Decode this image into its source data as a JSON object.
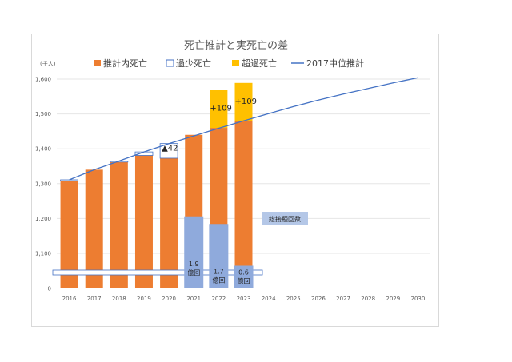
{
  "chart_data": {
    "type": "bar",
    "title": "死亡推計と実死亡の差",
    "ylabel": "(千人)",
    "ylim": [
      0,
      1600
    ],
    "y_axis_break": true,
    "y_ticks": [
      {
        "value": 0,
        "label": "0"
      },
      {
        "value": 1100,
        "label": "1,100"
      },
      {
        "value": 1200,
        "label": "1,200"
      },
      {
        "value": 1300,
        "label": "1,300"
      },
      {
        "value": 1400,
        "label": "1,400"
      },
      {
        "value": 1500,
        "label": "1,500"
      },
      {
        "value": 1600,
        "label": "1,600"
      }
    ],
    "categories": [
      "2016",
      "2017",
      "2018",
      "2019",
      "2020",
      "2021",
      "2022",
      "2023",
      "2024",
      "2025",
      "2026",
      "2027",
      "2028",
      "2029",
      "2030"
    ],
    "legend": [
      {
        "name": "推計内死亡",
        "color": "#ed7d31",
        "kind": "fill"
      },
      {
        "name": "過少死亡",
        "color": "#4472c4",
        "kind": "outline"
      },
      {
        "name": "超過死亡",
        "color": "#ffc000",
        "kind": "fill"
      },
      {
        "name": "2017中位推計",
        "color": "#4472c4",
        "kind": "line"
      }
    ],
    "series": [
      {
        "name": "推計内死亡",
        "values": [
          1308,
          1340,
          1362,
          1381,
          1373,
          1440,
          1460,
          1480,
          null,
          null,
          null,
          null,
          null,
          null,
          null
        ]
      },
      {
        "name": "過少死亡",
        "values": [
          3,
          0,
          3,
          10,
          42,
          0,
          0,
          0,
          null,
          null,
          null,
          null,
          null,
          null,
          null
        ]
      },
      {
        "name": "超過死亡",
        "values": [
          0,
          0,
          0,
          0,
          0,
          0,
          109,
          109,
          null,
          null,
          null,
          null,
          null,
          null,
          null
        ]
      },
      {
        "name": "2017中位推計",
        "values": [
          1311,
          1340,
          1365,
          1391,
          1415,
          1437,
          1459,
          1480,
          1501,
          1521,
          1540,
          1557,
          1573,
          1589,
          1604
        ]
      }
    ],
    "vaccination": {
      "label": "総接種回数",
      "bars": [
        {
          "category": "2021",
          "label": "1.9\n億回",
          "value": 1.9
        },
        {
          "category": "2022",
          "label": "1.7\n億回",
          "value": 1.7
        },
        {
          "category": "2023",
          "label": "0.6\n億回",
          "value": 0.6
        }
      ]
    },
    "annotations": [
      {
        "category": "2020",
        "text": "▲42"
      },
      {
        "category": "2022",
        "text": "+109"
      },
      {
        "category": "2023",
        "text": "+109"
      }
    ],
    "grid": true
  }
}
